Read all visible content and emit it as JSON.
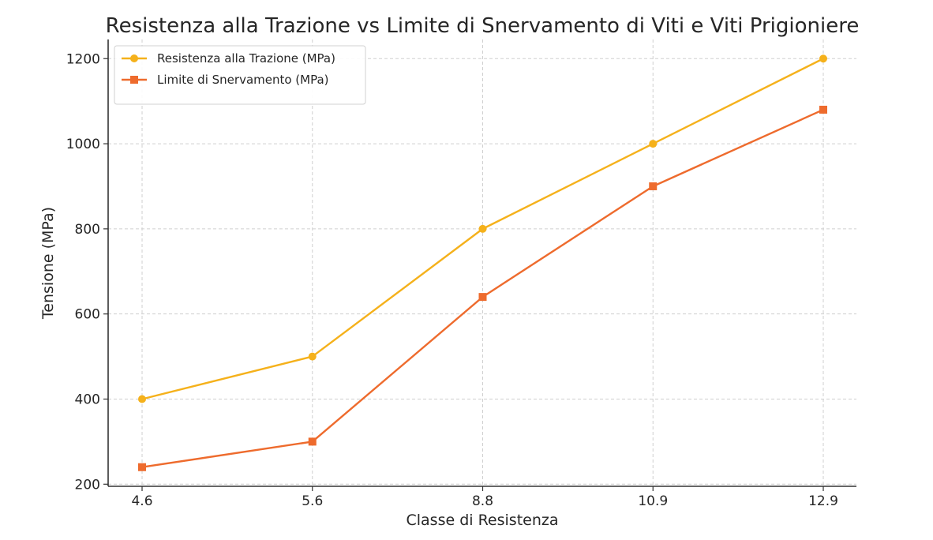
{
  "chart_data": {
    "type": "line",
    "title": "Resistenza alla Trazione vs Limite di Snervamento di Viti e Viti Prigioniere",
    "xlabel": "Classe di Resistenza",
    "ylabel": "Tensione (MPa)",
    "categories": [
      "4.6",
      "5.6",
      "8.8",
      "10.9",
      "12.9"
    ],
    "ylim": [
      195,
      1245
    ],
    "yticks": [
      200,
      400,
      600,
      800,
      1000,
      1200
    ],
    "grid": true,
    "legend_position": "top-left",
    "series": [
      {
        "name": "Resistenza alla Trazione (MPa)",
        "values": [
          400,
          500,
          800,
          1000,
          1200
        ],
        "color": "#f5b11b",
        "marker": "circle"
      },
      {
        "name": "Limite di Snervamento (MPa)",
        "values": [
          240,
          300,
          640,
          900,
          1080
        ],
        "color": "#ee6b2d",
        "marker": "square"
      }
    ]
  }
}
